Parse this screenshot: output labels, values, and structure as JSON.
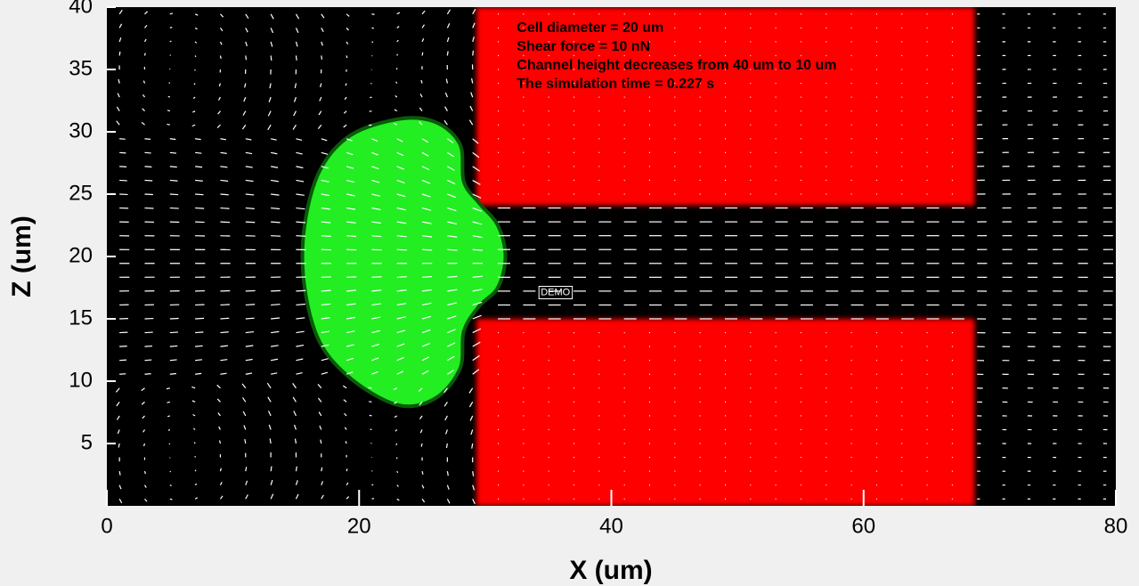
{
  "chart_data": {
    "type": "field",
    "xlabel": "X (um)",
    "ylabel": "Z (um)",
    "xlim": [
      0,
      80
    ],
    "ylim": [
      0,
      40
    ],
    "xticks": [
      0,
      20,
      40,
      60,
      80
    ],
    "yticks": [
      5,
      10,
      15,
      20,
      25,
      30,
      35,
      40
    ],
    "background": "#000000",
    "obstacle_color": "#ff0000",
    "cell_color": "#22ee22",
    "obstacles": [
      {
        "x": [
          29.3,
          68.8
        ],
        "z": [
          24.1,
          40
        ]
      },
      {
        "x": [
          29.3,
          68.8
        ],
        "z": [
          0,
          15
        ]
      }
    ],
    "cell": [
      [
        15.5,
        20
      ],
      [
        16.5,
        26
      ],
      [
        19,
        29.5
      ],
      [
        23,
        31
      ],
      [
        26,
        30.8
      ],
      [
        28,
        29
      ],
      [
        28.3,
        26
      ],
      [
        29.5,
        24.3
      ],
      [
        31,
        22.5
      ],
      [
        31.6,
        20
      ],
      [
        31,
        17.5
      ],
      [
        29.5,
        16
      ],
      [
        28.3,
        14
      ],
      [
        28,
        11
      ],
      [
        26,
        8.6
      ],
      [
        23,
        8.1
      ],
      [
        19,
        10.5
      ],
      [
        16.5,
        14
      ]
    ],
    "annotations": [
      "Cell diameter = 20 um",
      "Shear force = 10 nN",
      "Channel height decreases from 40 um to 10 um",
      "The simulation time = 0.227 s"
    ],
    "annotation_position": [
      32.5,
      38
    ],
    "watermark": {
      "text": "DEMO",
      "x": 34.4,
      "z": 17.1
    }
  }
}
